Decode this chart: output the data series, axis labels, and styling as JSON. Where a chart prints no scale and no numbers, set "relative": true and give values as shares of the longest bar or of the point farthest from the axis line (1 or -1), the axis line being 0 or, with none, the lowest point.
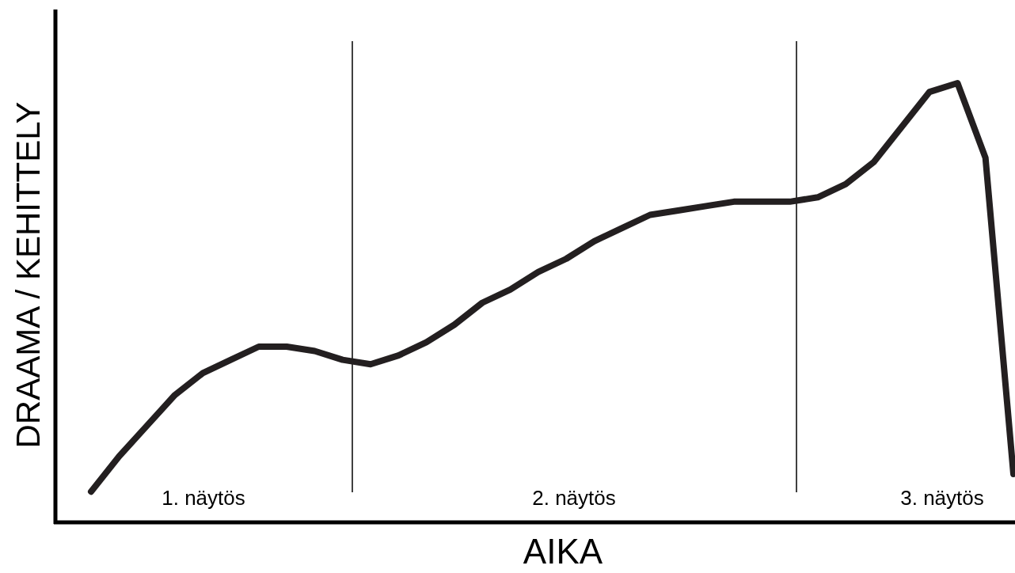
{
  "chart_data": {
    "type": "line",
    "relative": true,
    "xlabel": "AIKA",
    "ylabel": "DRAAMA / KEHITTELY",
    "categories": [
      null,
      null,
      null,
      null,
      null,
      null,
      null,
      null,
      null,
      null,
      null,
      null,
      null,
      null,
      null,
      null,
      null,
      null,
      null,
      null,
      null,
      null,
      null,
      null,
      null,
      null,
      null,
      null,
      null,
      null,
      null,
      null,
      null,
      null
    ],
    "series": [
      {
        "color": "#231f20",
        "values": [
          0.07,
          0.15,
          0.22,
          0.29,
          0.34,
          0.37,
          0.4,
          0.4,
          0.39,
          0.37,
          0.36,
          0.38,
          0.41,
          0.45,
          0.5,
          0.53,
          0.57,
          0.6,
          0.64,
          0.67,
          0.7,
          0.71,
          0.72,
          0.73,
          0.73,
          0.73,
          0.74,
          0.77,
          0.82,
          0.9,
          0.98,
          1,
          0.83,
          0.11
        ]
      }
    ],
    "annotations": [
      "1. näytös",
      "2. näytös",
      "3. näytös"
    ]
  }
}
